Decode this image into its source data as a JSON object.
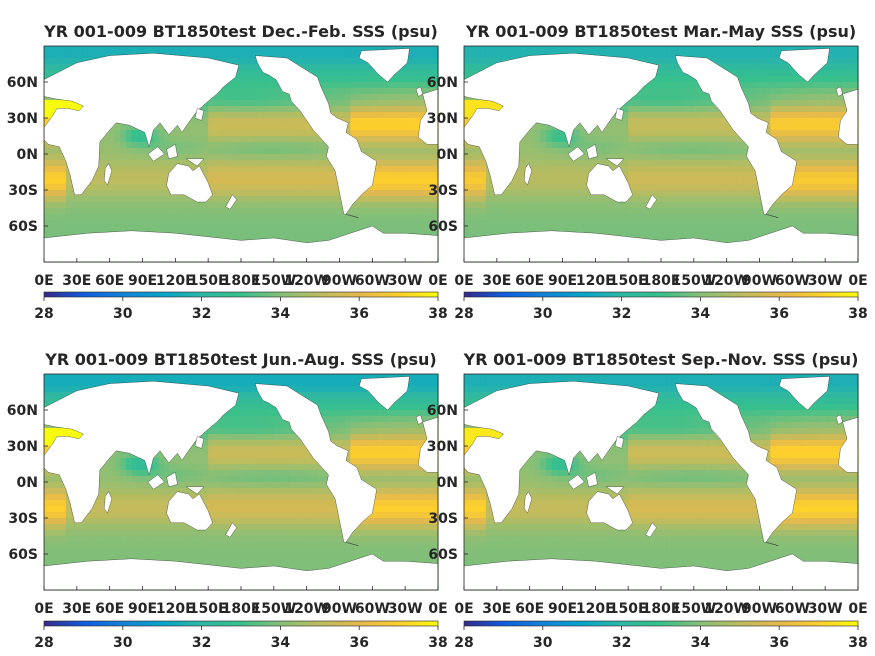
{
  "chart_data": [
    {
      "type": "heatmap",
      "title": "YR 001-009 BT1850test Dec.-Feb. SSS (psu)",
      "x_ticks": [
        "0E",
        "30E",
        "60E",
        "90E",
        "120E",
        "150E",
        "180E",
        "150W",
        "120W",
        "90W",
        "60W",
        "30W",
        "0E"
      ],
      "y_ticks": [
        "60N",
        "30N",
        "0N",
        "30S",
        "60S"
      ],
      "colorbar": {
        "ticks": [
          28,
          30,
          32,
          34,
          36,
          38
        ],
        "range": [
          28,
          38
        ],
        "colormap": "parula"
      },
      "regions_psu": {
        "subtropical_atlantic": 37.2,
        "subtropical_pacific": 35.8,
        "indian_subtropics": 35.2,
        "equatorial": 34.3,
        "southern_ocean": 33.8,
        "arctic_rim": 31.0,
        "mediterranean": 38.0,
        "bay_of_bengal": 32.8
      }
    },
    {
      "type": "heatmap",
      "title": "YR 001-009 BT1850test Mar.-May SSS (psu)",
      "x_ticks": [
        "0E",
        "30E",
        "60E",
        "90E",
        "120E",
        "150E",
        "180E",
        "150W",
        "120W",
        "90W",
        "60W",
        "30W",
        "0E"
      ],
      "y_ticks": [
        "60N",
        "30N",
        "0N",
        "30S",
        "60S"
      ],
      "colorbar": {
        "ticks": [
          28,
          30,
          32,
          34,
          36,
          38
        ],
        "range": [
          28,
          38
        ],
        "colormap": "parula"
      },
      "regions_psu": {
        "subtropical_atlantic": 37.0,
        "subtropical_pacific": 35.6,
        "indian_subtropics": 35.1,
        "equatorial": 34.3,
        "southern_ocean": 33.8,
        "arctic_rim": 31.2,
        "mediterranean": 37.5,
        "bay_of_bengal": 33.0
      }
    },
    {
      "type": "heatmap",
      "title": "YR 001-009 BT1850test Jun.-Aug. SSS (psu)",
      "x_ticks": [
        "0E",
        "30E",
        "60E",
        "90E",
        "120E",
        "150E",
        "180E",
        "150W",
        "120W",
        "90W",
        "60W",
        "30W",
        "0E"
      ],
      "y_ticks": [
        "60N",
        "30N",
        "0N",
        "30S",
        "60S"
      ],
      "colorbar": {
        "ticks": [
          28,
          30,
          32,
          34,
          36,
          38
        ],
        "range": [
          28,
          38
        ],
        "colormap": "parula"
      },
      "regions_psu": {
        "subtropical_atlantic": 37.1,
        "subtropical_pacific": 35.7,
        "indian_subtropics": 35.3,
        "equatorial": 34.2,
        "southern_ocean": 33.9,
        "arctic_rim": 30.8,
        "mediterranean": 38.0,
        "bay_of_bengal": 32.5
      }
    },
    {
      "type": "heatmap",
      "title": "YR 001-009 BT1850test Sep.-Nov. SSS (psu)",
      "x_ticks": [
        "0E",
        "30E",
        "60E",
        "90E",
        "120E",
        "150E",
        "180E",
        "150W",
        "120W",
        "90W",
        "60W",
        "30W",
        "0E"
      ],
      "y_ticks": [
        "60N",
        "30N",
        "0N",
        "30S",
        "60S"
      ],
      "colorbar": {
        "ticks": [
          28,
          30,
          32,
          34,
          36,
          38
        ],
        "range": [
          28,
          38
        ],
        "colormap": "parula"
      },
      "regions_psu": {
        "subtropical_atlantic": 37.2,
        "subtropical_pacific": 35.8,
        "indian_subtropics": 35.3,
        "equatorial": 34.2,
        "southern_ocean": 33.9,
        "arctic_rim": 31.0,
        "mediterranean": 37.6,
        "bay_of_bengal": 32.7
      }
    }
  ]
}
